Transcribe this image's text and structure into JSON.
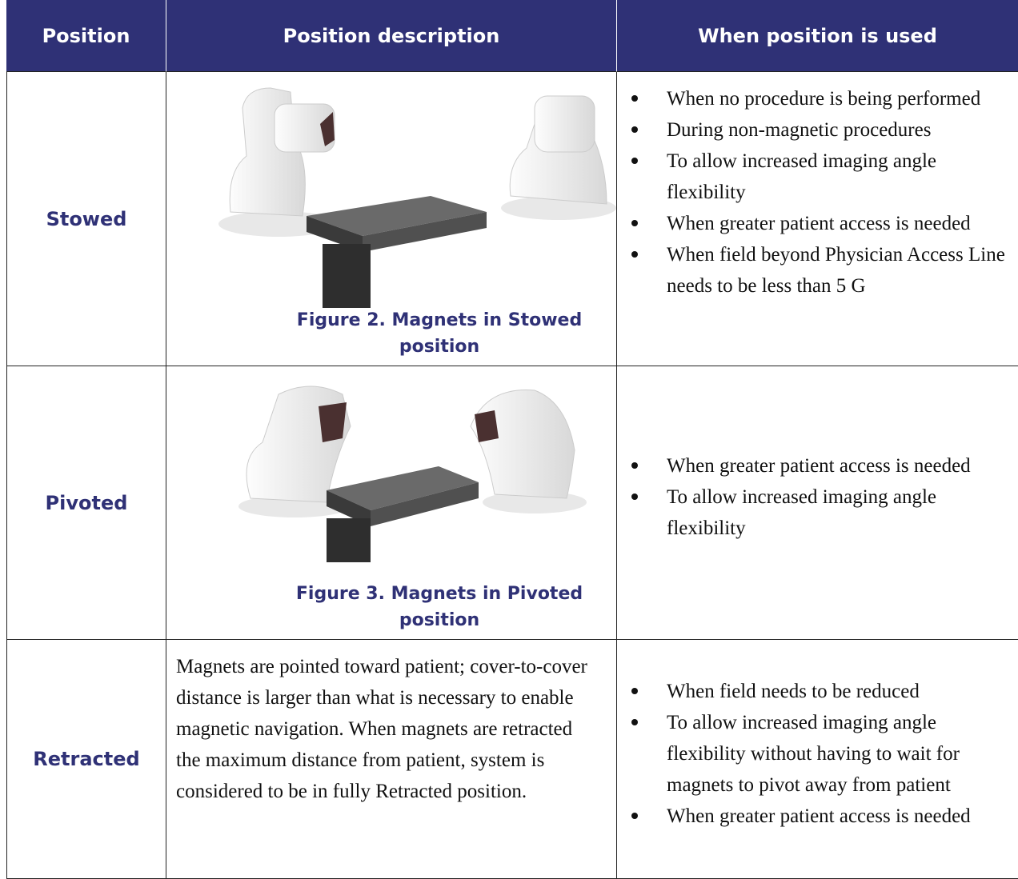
{
  "table": {
    "header": [
      "Position",
      "Position description",
      "When position is used"
    ],
    "rows": [
      {
        "position": "Stowed",
        "figure_caption": "Figure 2. Magnets in Stowed position",
        "uses": [
          "When no procedure is being performed",
          "During non-magnetic procedures",
          "To allow increased imaging angle flexibility",
          "When greater patient access is needed",
          "When field beyond Physician Access Line needs to be less than 5 G"
        ]
      },
      {
        "position": "Pivoted",
        "figure_caption": "Figure 3. Magnets in Pivoted position",
        "uses": [
          "When greater patient access is needed",
          "To allow increased imaging angle flexibility"
        ]
      },
      {
        "position": "Retracted",
        "description": "Magnets are pointed toward patient; cover-to-cover distance is larger than what is necessary to enable magnetic navigation. When magnets are retracted the maximum distance from patient, system is considered to be in fully Retracted position.",
        "uses": [
          "When field needs to be reduced",
          "To allow increased imaging angle flexibility without having to wait for magnets to pivot away from patient",
          "When greater patient access is needed"
        ]
      }
    ]
  }
}
